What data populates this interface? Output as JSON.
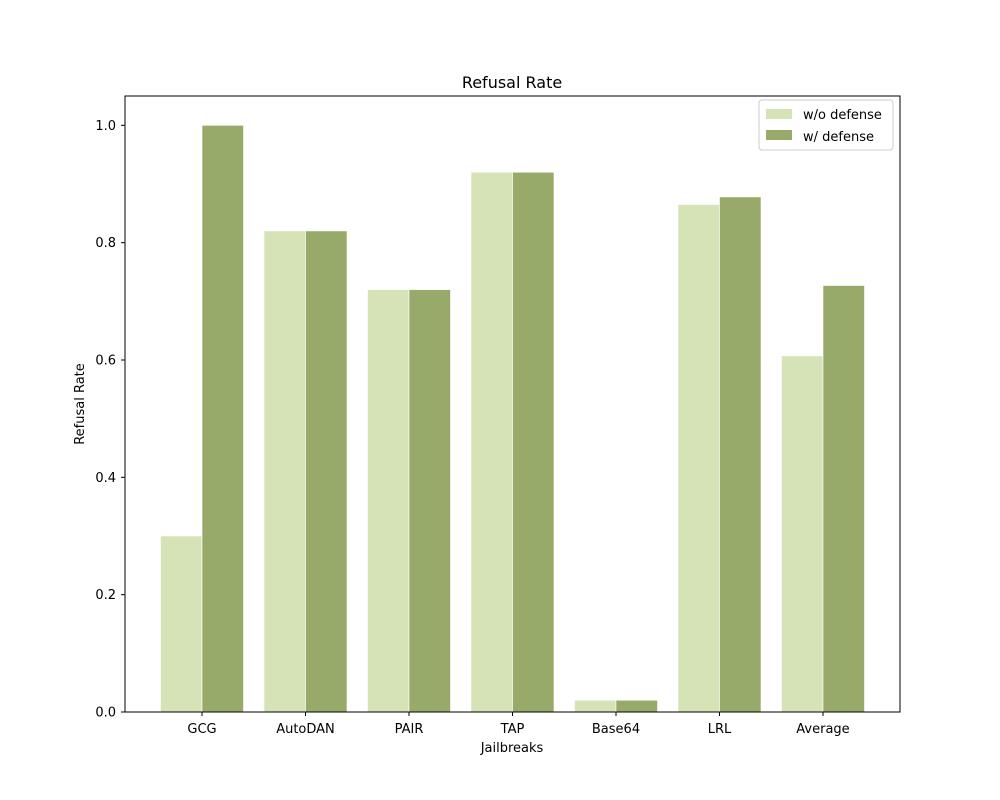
{
  "chart_data": {
    "type": "bar",
    "title": "Refusal Rate",
    "xlabel": "Jailbreaks",
    "ylabel": "Refusal Rate",
    "categories": [
      "GCG",
      "AutoDAN",
      "PAIR",
      "TAP",
      "Base64",
      "LRL",
      "Average"
    ],
    "series": [
      {
        "name": "w/o defense",
        "color": "#d6e3b7",
        "values": [
          0.3,
          0.82,
          0.72,
          0.92,
          0.02,
          0.865,
          0.607
        ]
      },
      {
        "name": "w/ defense",
        "color": "#98aa69",
        "values": [
          1.0,
          0.82,
          0.72,
          0.92,
          0.02,
          0.878,
          0.727
        ]
      }
    ],
    "ylim": [
      0,
      1.05
    ],
    "yticks": [
      "0.0",
      "0.2",
      "0.4",
      "0.6",
      "0.8",
      "1.0"
    ],
    "grid": false,
    "legend_position": "top-right"
  }
}
